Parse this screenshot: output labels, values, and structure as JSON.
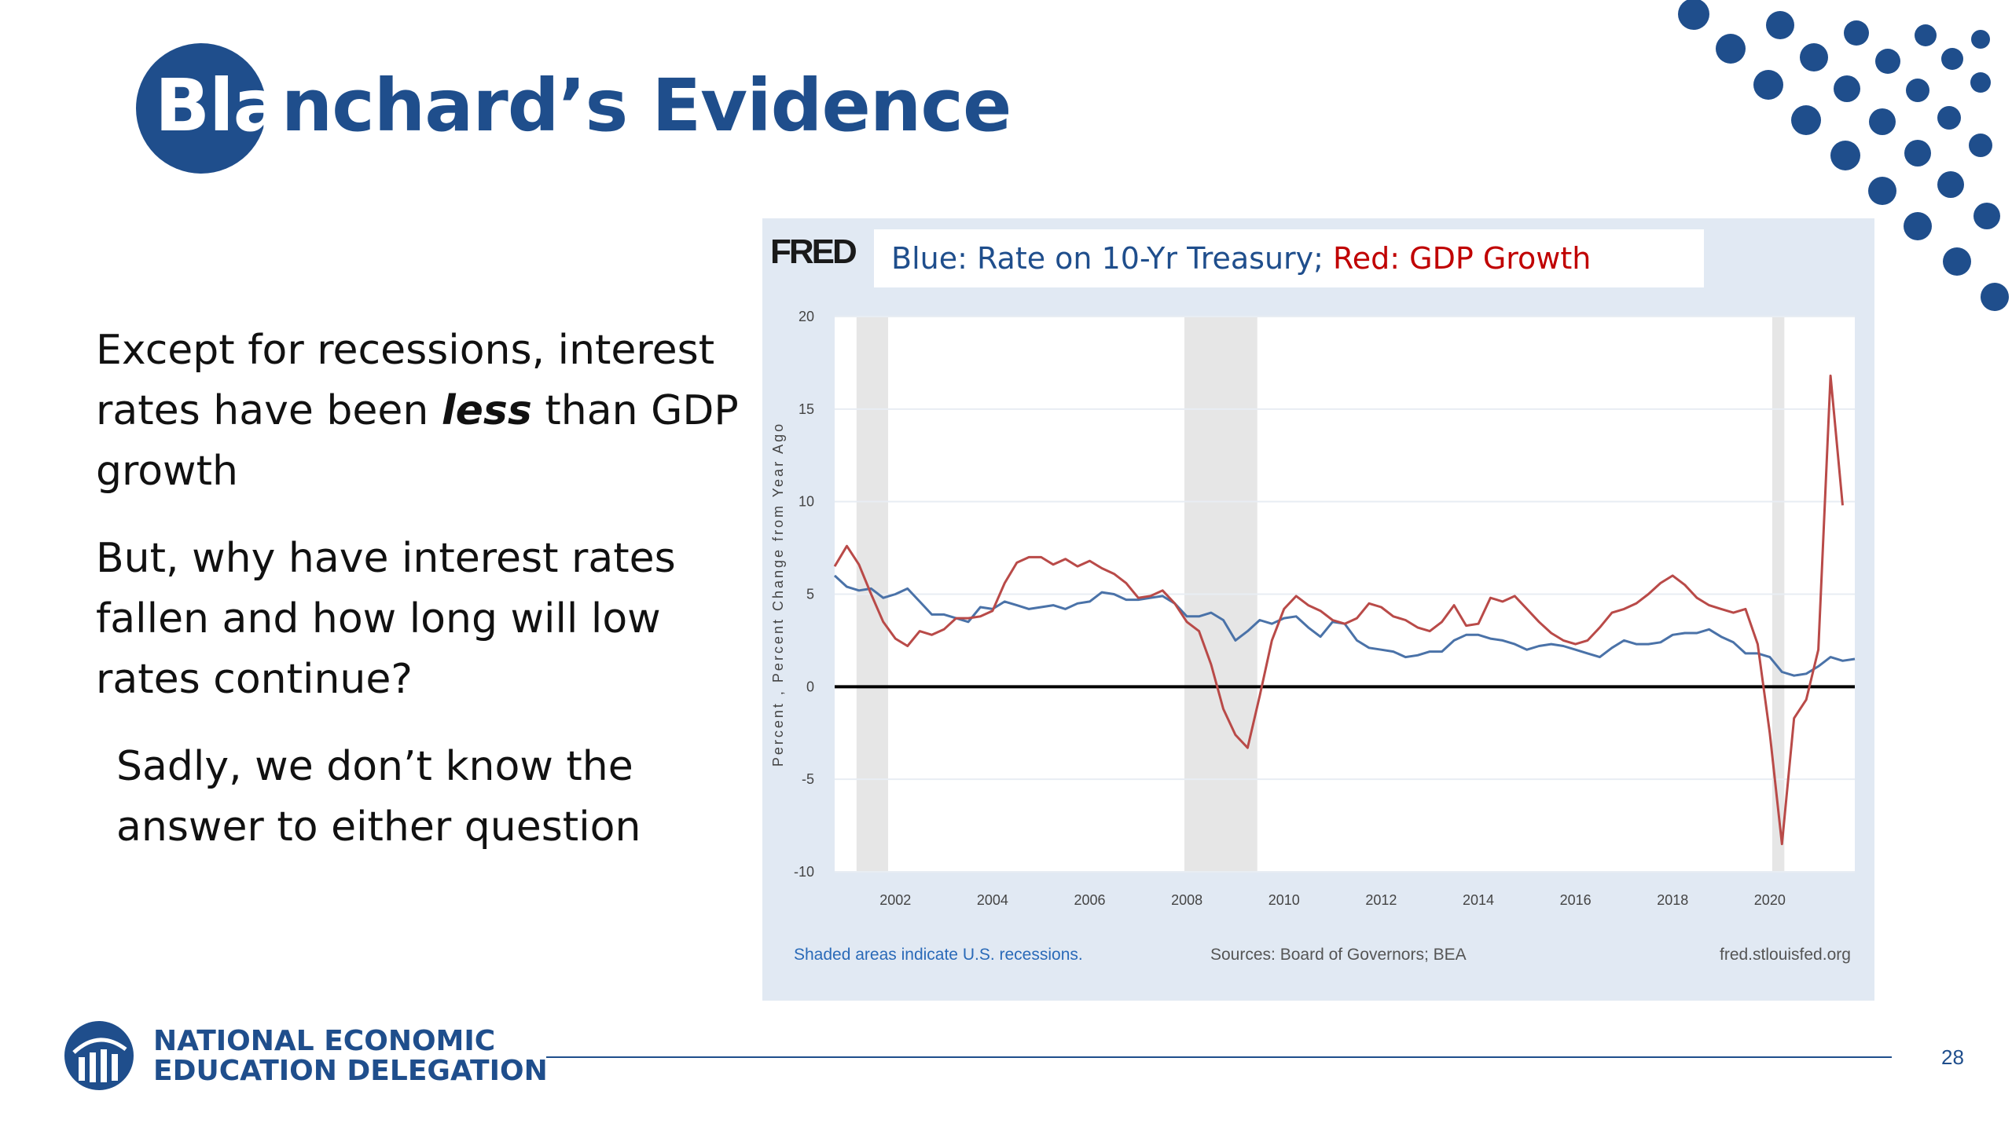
{
  "slide": {
    "title_part1": "Bla",
    "title_part2": "nchard’s Evidence",
    "bullets": [
      {
        "pre": "Except for recessions, interest rates have been ",
        "em": "less",
        "post": " than GDP growth"
      },
      {
        "pre": "But, why have interest rates fallen and how long will low rates continue?",
        "em": "",
        "post": ""
      },
      {
        "pre": "Sadly, we don’t know the answer to either question",
        "em": "",
        "post": ""
      }
    ],
    "org_line1": "NATIONAL ECONOMIC",
    "org_line2": "EDUCATION DELEGATION",
    "page_number": "28",
    "colors": {
      "brand_blue": "#1f4e8c",
      "panel_bg": "#e1e9f3",
      "recession_shade": "#e6e6e6",
      "red": "#c00000"
    }
  },
  "chart": {
    "logo": "FRED",
    "legend_blue": "Blue: Rate on 10-Yr Treasury;",
    "legend_red": "Red: GDP Growth",
    "footer_left": "Shaded areas indicate U.S. recessions.",
    "footer_mid": "Sources: Board of Governors; BEA",
    "footer_right": "fred.stlouisfed.org"
  },
  "chart_data": {
    "type": "line",
    "title": "",
    "xlabel": "",
    "ylabel": "Percent , Percent Change from Year Ago",
    "xlim": [
      2000.75,
      2021.75
    ],
    "ylim": [
      -10,
      20
    ],
    "yticks": [
      -10,
      -5,
      0,
      5,
      10,
      15,
      20
    ],
    "xticks": [
      2002,
      2004,
      2006,
      2008,
      2010,
      2012,
      2014,
      2016,
      2018,
      2020
    ],
    "grid": true,
    "zero_line": true,
    "recessions": [
      [
        2001.2,
        2001.85
      ],
      [
        2007.95,
        2009.45
      ],
      [
        2020.05,
        2020.3
      ]
    ],
    "series": [
      {
        "name": "Rate on 10-Yr Treasury",
        "color": "#4a72a8",
        "x": [
          2000.75,
          2001.0,
          2001.25,
          2001.5,
          2001.75,
          2002.0,
          2002.25,
          2002.5,
          2002.75,
          2003.0,
          2003.25,
          2003.5,
          2003.75,
          2004.0,
          2004.25,
          2004.5,
          2004.75,
          2005.0,
          2005.25,
          2005.5,
          2005.75,
          2006.0,
          2006.25,
          2006.5,
          2006.75,
          2007.0,
          2007.25,
          2007.5,
          2007.75,
          2008.0,
          2008.25,
          2008.5,
          2008.75,
          2009.0,
          2009.25,
          2009.5,
          2009.75,
          2010.0,
          2010.25,
          2010.5,
          2010.75,
          2011.0,
          2011.25,
          2011.5,
          2011.75,
          2012.0,
          2012.25,
          2012.5,
          2012.75,
          2013.0,
          2013.25,
          2013.5,
          2013.75,
          2014.0,
          2014.25,
          2014.5,
          2014.75,
          2015.0,
          2015.25,
          2015.5,
          2015.75,
          2016.0,
          2016.25,
          2016.5,
          2016.75,
          2017.0,
          2017.25,
          2017.5,
          2017.75,
          2018.0,
          2018.25,
          2018.5,
          2018.75,
          2019.0,
          2019.25,
          2019.5,
          2019.75,
          2020.0,
          2020.25,
          2020.5,
          2020.75,
          2021.0,
          2021.25,
          2021.5,
          2021.75
        ],
        "y": [
          6.0,
          5.4,
          5.2,
          5.3,
          4.8,
          5.0,
          5.3,
          4.6,
          3.9,
          3.9,
          3.7,
          3.5,
          4.3,
          4.2,
          4.6,
          4.4,
          4.2,
          4.3,
          4.4,
          4.2,
          4.5,
          4.6,
          5.1,
          5.0,
          4.7,
          4.7,
          4.8,
          4.9,
          4.5,
          3.8,
          3.8,
          4.0,
          3.6,
          2.5,
          3.0,
          3.6,
          3.4,
          3.7,
          3.8,
          3.2,
          2.7,
          3.5,
          3.4,
          2.5,
          2.1,
          2.0,
          1.9,
          1.6,
          1.7,
          1.9,
          1.9,
          2.5,
          2.8,
          2.8,
          2.6,
          2.5,
          2.3,
          2.0,
          2.2,
          2.3,
          2.2,
          2.0,
          1.8,
          1.6,
          2.1,
          2.5,
          2.3,
          2.3,
          2.4,
          2.8,
          2.9,
          2.9,
          3.1,
          2.7,
          2.4,
          1.8,
          1.8,
          1.6,
          0.8,
          0.6,
          0.7,
          1.1,
          1.6,
          1.4,
          1.5
        ]
      },
      {
        "name": "GDP Growth",
        "color": "#b94a48",
        "x": [
          2000.75,
          2001.0,
          2001.25,
          2001.5,
          2001.75,
          2002.0,
          2002.25,
          2002.5,
          2002.75,
          2003.0,
          2003.25,
          2003.5,
          2003.75,
          2004.0,
          2004.25,
          2004.5,
          2004.75,
          2005.0,
          2005.25,
          2005.5,
          2005.75,
          2006.0,
          2006.25,
          2006.5,
          2006.75,
          2007.0,
          2007.25,
          2007.5,
          2007.75,
          2008.0,
          2008.25,
          2008.5,
          2008.75,
          2009.0,
          2009.25,
          2009.5,
          2009.75,
          2010.0,
          2010.25,
          2010.5,
          2010.75,
          2011.0,
          2011.25,
          2011.5,
          2011.75,
          2012.0,
          2012.25,
          2012.5,
          2012.75,
          2013.0,
          2013.25,
          2013.5,
          2013.75,
          2014.0,
          2014.25,
          2014.5,
          2014.75,
          2015.0,
          2015.25,
          2015.5,
          2015.75,
          2016.0,
          2016.25,
          2016.5,
          2016.75,
          2017.0,
          2017.25,
          2017.5,
          2017.75,
          2018.0,
          2018.25,
          2018.5,
          2018.75,
          2019.0,
          2019.25,
          2019.5,
          2019.75,
          2020.0,
          2020.25,
          2020.5,
          2020.75,
          2021.0,
          2021.25,
          2021.5
        ],
        "y": [
          6.5,
          7.6,
          6.6,
          5.0,
          3.5,
          2.6,
          2.2,
          3.0,
          2.8,
          3.1,
          3.7,
          3.7,
          3.8,
          4.1,
          5.6,
          6.7,
          7.0,
          7.0,
          6.6,
          6.9,
          6.5,
          6.8,
          6.4,
          6.1,
          5.6,
          4.8,
          4.9,
          5.2,
          4.5,
          3.5,
          3.0,
          1.2,
          -1.2,
          -2.6,
          -3.3,
          -0.5,
          2.5,
          4.2,
          4.9,
          4.4,
          4.1,
          3.6,
          3.4,
          3.7,
          4.5,
          4.3,
          3.8,
          3.6,
          3.2,
          3.0,
          3.5,
          4.4,
          3.3,
          3.4,
          4.8,
          4.6,
          4.9,
          4.2,
          3.5,
          2.9,
          2.5,
          2.3,
          2.5,
          3.2,
          4.0,
          4.2,
          4.5,
          5.0,
          5.6,
          6.0,
          5.5,
          4.8,
          4.4,
          4.2,
          4.0,
          4.2,
          2.3,
          -2.5,
          -8.5,
          -1.7,
          -0.7,
          2.0,
          16.8,
          9.8
        ]
      }
    ]
  }
}
